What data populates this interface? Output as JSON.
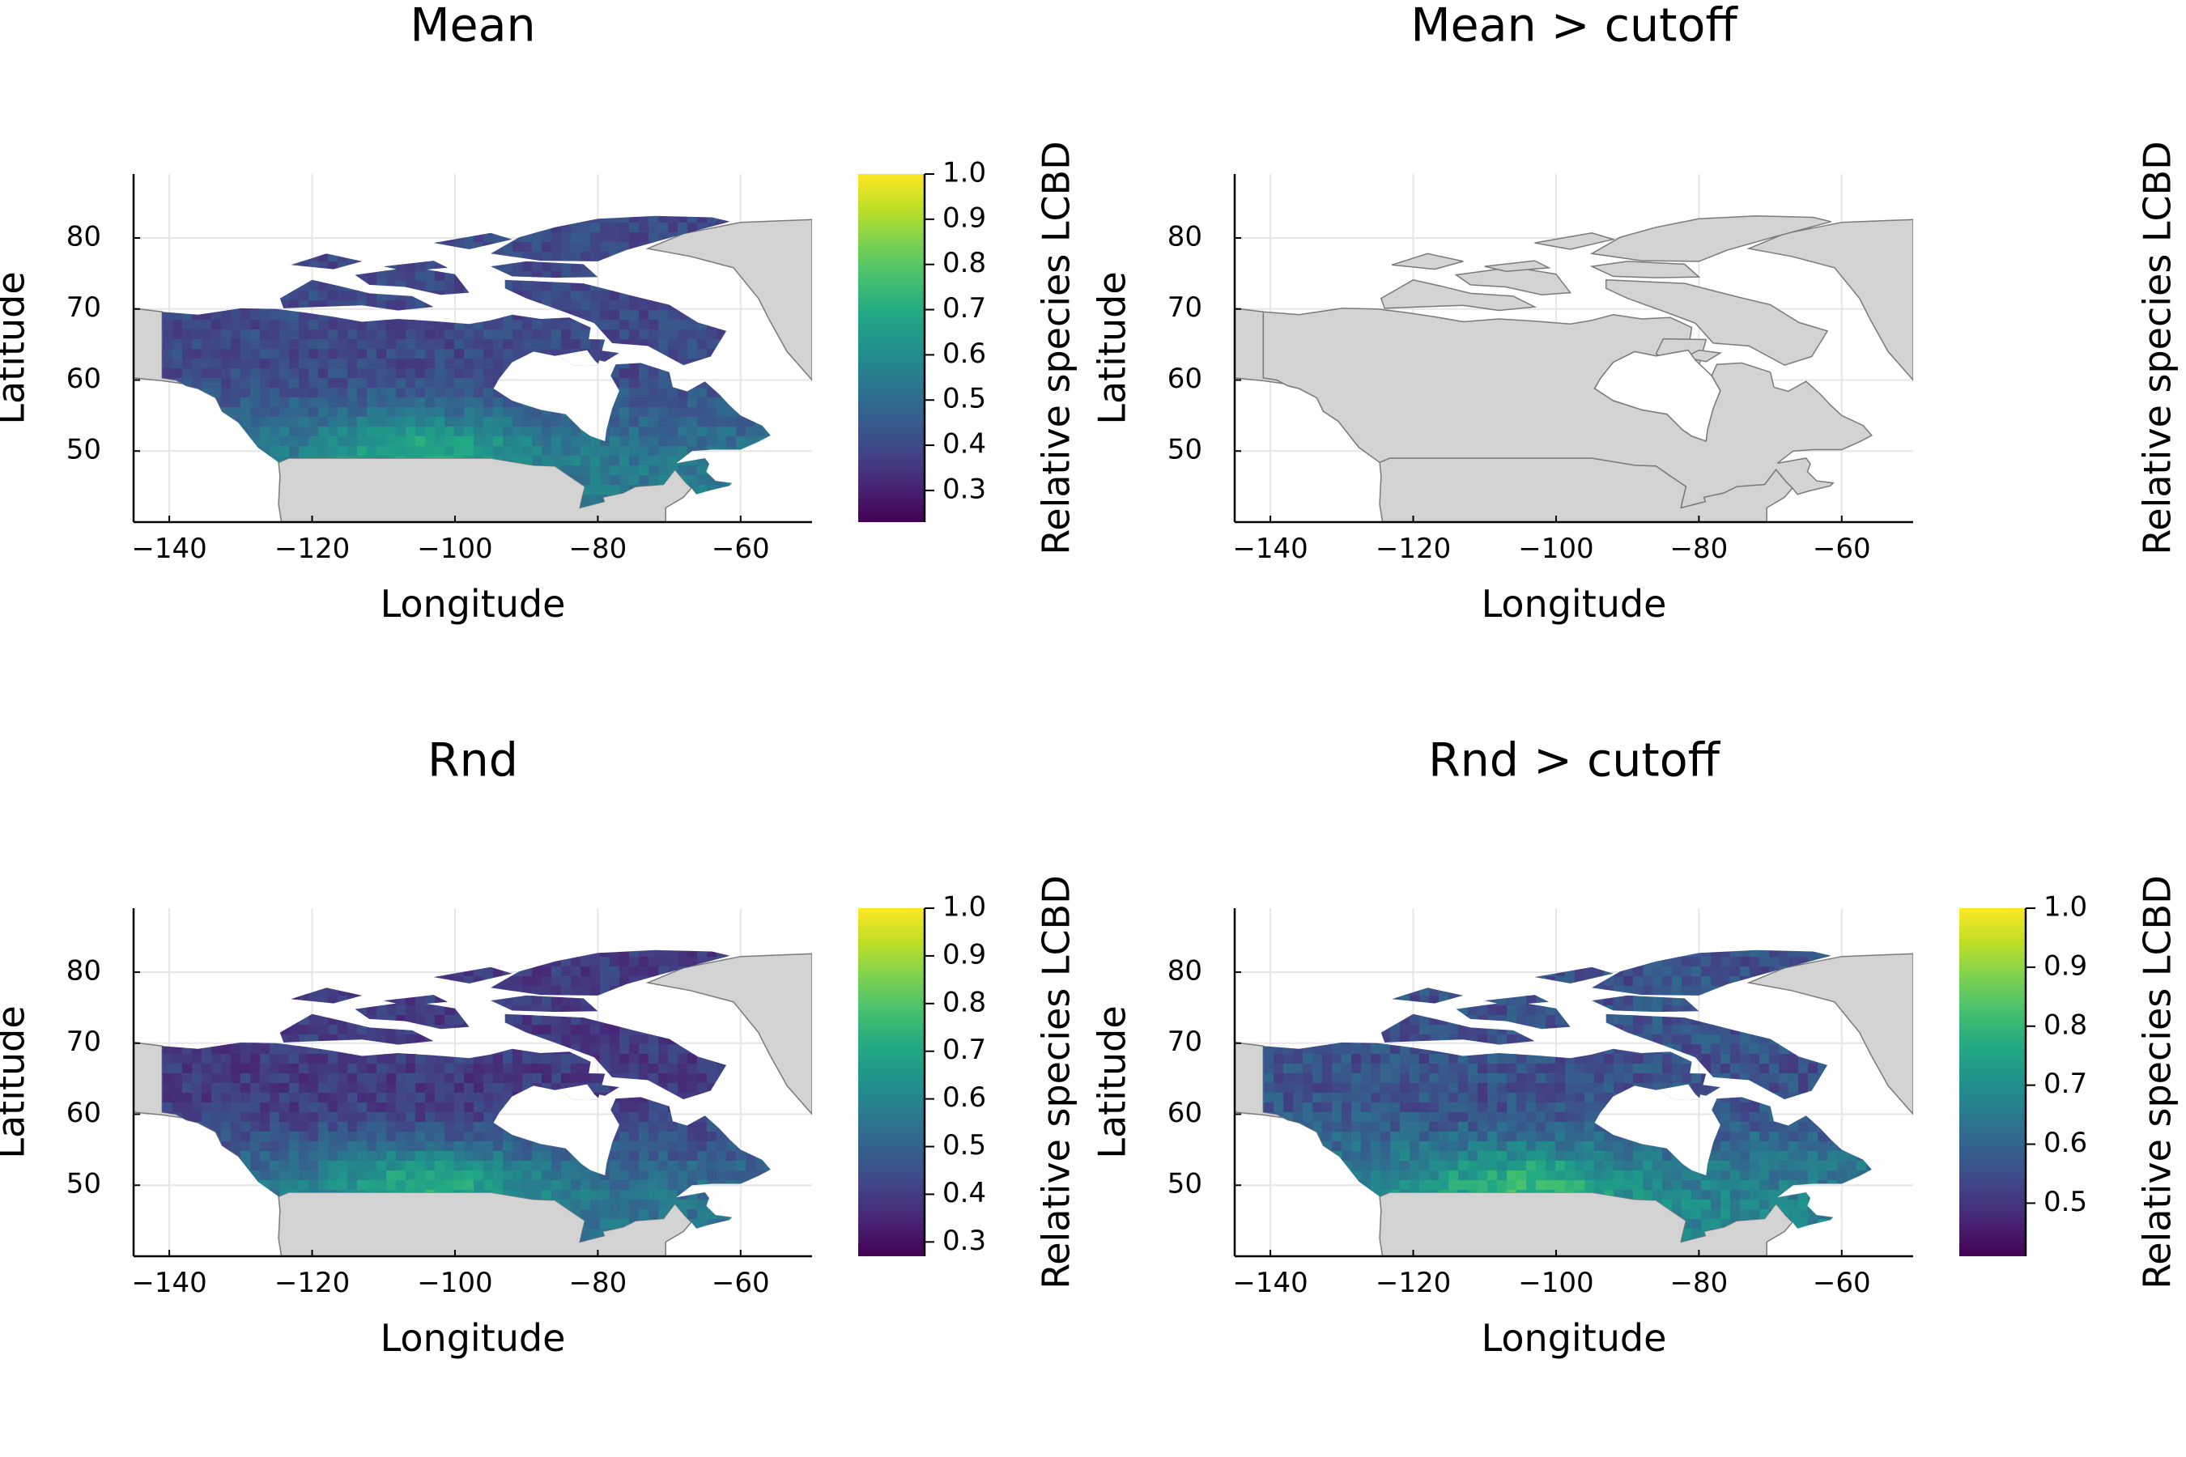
{
  "figure": {
    "xlabel": "Longitude",
    "ylabel": "Latitude",
    "colorbar_label": "Relative species LCBD",
    "x_ticks": [
      -140,
      -120,
      -100,
      -80,
      -60
    ],
    "y_ticks": [
      50,
      60,
      70,
      80
    ],
    "x_range": [
      -145,
      -50
    ],
    "y_range": [
      40,
      89
    ],
    "background_land_color": "#d3d3d3",
    "colormap": "viridis"
  },
  "panels": [
    {
      "title": "Mean",
      "raster": "lcbd",
      "color_level_range": [
        0.33,
        0.72
      ],
      "colorbar": {
        "range": [
          0.23,
          1.0
        ],
        "ticks": [
          "1.0",
          "0.9",
          "0.8",
          "0.7",
          "0.6",
          "0.5",
          "0.4",
          "0.3"
        ]
      }
    },
    {
      "title": "Mean > cutoff",
      "raster": "none",
      "colorbar": null
    },
    {
      "title": "Rnd",
      "raster": "lcbd",
      "color_level_range": [
        0.32,
        0.75
      ],
      "colorbar": {
        "range": [
          0.27,
          1.0
        ],
        "ticks": [
          "1.0",
          "0.9",
          "0.8",
          "0.7",
          "0.6",
          "0.5",
          "0.4",
          "0.3"
        ]
      }
    },
    {
      "title": "Rnd > cutoff",
      "raster": "lcbd",
      "color_level_range": [
        0.5,
        0.82
      ],
      "colorbar": {
        "range": [
          0.41,
          1.0
        ],
        "ticks": [
          "1.0",
          "0.9",
          "0.8",
          "0.7",
          "0.6",
          "0.5"
        ]
      }
    }
  ]
}
